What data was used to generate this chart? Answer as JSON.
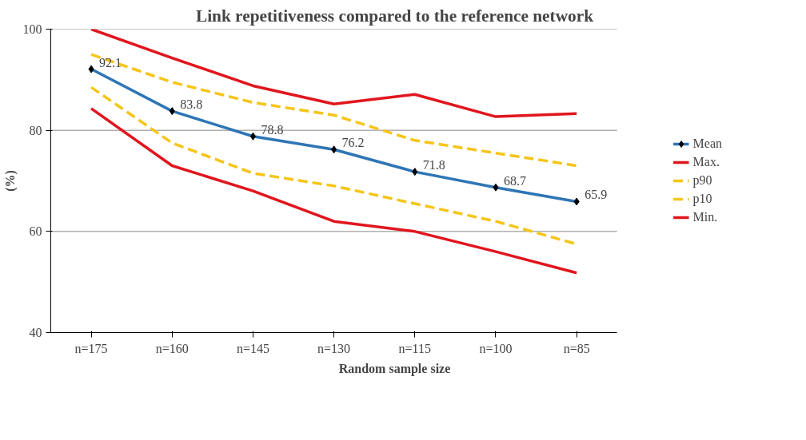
{
  "chart_data": {
    "type": "line",
    "title": "Link repetitiveness compared to the reference network",
    "xlabel": "Random sample size",
    "ylabel": "(%)",
    "categories": [
      "n=175",
      "n=160",
      "n=145",
      "n=130",
      "n=115",
      "n=100",
      "n=85"
    ],
    "series": [
      {
        "name": "Mean",
        "color": "#2e75b6",
        "marker": "diamond",
        "line_style": "solid",
        "values": [
          92.1,
          83.8,
          78.8,
          76.2,
          71.8,
          68.7,
          65.9
        ],
        "value_labels": [
          "92.1",
          "83.8",
          "78.8",
          "76.2",
          "71.8",
          "68.7",
          "65.9"
        ]
      },
      {
        "name": "Max.",
        "color": "#e0161e",
        "marker": "none",
        "line_style": "solid",
        "values": [
          100,
          94.3,
          88.8,
          85.2,
          87.1,
          82.7,
          83.3
        ]
      },
      {
        "name": "p90",
        "color": "#f5c518",
        "marker": "none",
        "line_style": "dashed",
        "values": [
          95,
          89.5,
          85.5,
          83,
          78,
          75.5,
          73
        ]
      },
      {
        "name": "p10",
        "color": "#f5c518",
        "marker": "none",
        "line_style": "dashed",
        "values": [
          88.5,
          77.5,
          71.5,
          69,
          65.5,
          62,
          57.5
        ]
      },
      {
        "name": "Min.",
        "color": "#e0161e",
        "marker": "none",
        "line_style": "solid",
        "values": [
          84.3,
          73,
          68,
          62,
          60,
          56,
          51.8
        ]
      }
    ],
    "ylim": [
      40,
      100
    ],
    "yticks": [
      40,
      60,
      80,
      100
    ],
    "grid": "y",
    "legend": "right"
  }
}
